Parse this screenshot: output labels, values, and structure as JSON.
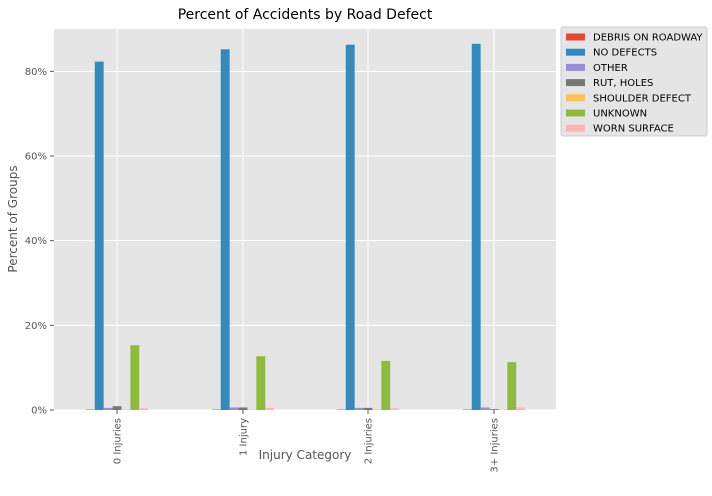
{
  "chart_data": {
    "type": "bar",
    "title": "Percent of Accidents by Road Defect",
    "xlabel": "Injury Category",
    "ylabel": "Percent of Groups",
    "categories": [
      "0 Injuries",
      "1 Injury",
      "2 Injuries",
      "3+ Injuries"
    ],
    "ylim": [
      0,
      90
    ],
    "yticks": [
      0,
      20,
      40,
      60,
      80
    ],
    "ytick_labels": [
      "0%",
      "20%",
      "40%",
      "60%",
      "80%"
    ],
    "grid": true,
    "legend_position": "outside-top-right",
    "series": [
      {
        "name": "DEBRIS ON ROADWAY",
        "color": "#E24A33",
        "values": [
          0.1,
          0.1,
          0.1,
          0.1
        ]
      },
      {
        "name": "NO DEFECTS",
        "color": "#348ABD",
        "values": [
          82.3,
          85.2,
          86.3,
          86.5
        ]
      },
      {
        "name": "OTHER",
        "color": "#988ED5",
        "values": [
          0.5,
          0.6,
          0.5,
          0.6
        ]
      },
      {
        "name": "RUT, HOLES",
        "color": "#777777",
        "values": [
          0.9,
          0.6,
          0.5,
          0.2
        ]
      },
      {
        "name": "SHOULDER DEFECT",
        "color": "#FBC15E",
        "values": [
          0.1,
          0.1,
          0.1,
          0.1
        ]
      },
      {
        "name": "UNKNOWN",
        "color": "#8EBA42",
        "values": [
          15.3,
          12.7,
          11.6,
          11.3
        ]
      },
      {
        "name": "WORN SURFACE",
        "color": "#FFB5B8",
        "values": [
          0.4,
          0.5,
          0.4,
          0.6
        ]
      }
    ]
  }
}
